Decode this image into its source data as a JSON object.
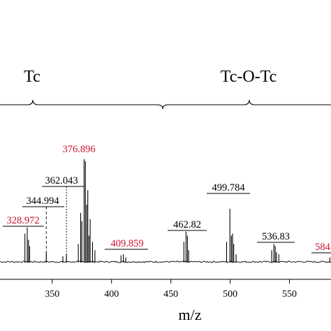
{
  "chart_data": {
    "type": "line",
    "title": "",
    "xlabel": "m/z",
    "ylabel": "",
    "xlim": [
      306,
      585
    ],
    "x_ticks": [
      "350",
      "400",
      "450",
      "500",
      "550"
    ],
    "x_tick_values": [
      350,
      400,
      450,
      500,
      550
    ],
    "ylim": [
      0,
      100
    ],
    "grid": false,
    "legend": "none",
    "groups": [
      {
        "label": "Tc",
        "range": [
          306,
          441
        ],
        "peak_position": 345
      },
      {
        "label": "Tc-O-Tc",
        "range": [
          441,
          585
        ],
        "peak_position": 517
      }
    ],
    "series": [
      {
        "peaks": [
          {
            "x": 327,
            "y": 28
          },
          {
            "x": 328.972,
            "y": 34
          },
          {
            "x": 330,
            "y": 22
          },
          {
            "x": 331,
            "y": 16
          },
          {
            "x": 345,
            "y": 10
          },
          {
            "x": 359,
            "y": 6
          },
          {
            "x": 362,
            "y": 8
          },
          {
            "x": 372,
            "y": 18
          },
          {
            "x": 374,
            "y": 48
          },
          {
            "x": 375,
            "y": 40
          },
          {
            "x": 376.896,
            "y": 100
          },
          {
            "x": 378,
            "y": 98
          },
          {
            "x": 379,
            "y": 56
          },
          {
            "x": 380,
            "y": 70
          },
          {
            "x": 381,
            "y": 26
          },
          {
            "x": 382,
            "y": 42
          },
          {
            "x": 384,
            "y": 20
          },
          {
            "x": 386,
            "y": 12
          },
          {
            "x": 408,
            "y": 7
          },
          {
            "x": 410,
            "y": 8
          },
          {
            "x": 412,
            "y": 5
          },
          {
            "x": 461,
            "y": 20
          },
          {
            "x": 462.82,
            "y": 30
          },
          {
            "x": 464,
            "y": 26
          },
          {
            "x": 465,
            "y": 12
          },
          {
            "x": 497,
            "y": 20
          },
          {
            "x": 499.784,
            "y": 52
          },
          {
            "x": 501,
            "y": 26
          },
          {
            "x": 502,
            "y": 28
          },
          {
            "x": 503,
            "y": 18
          },
          {
            "x": 505,
            "y": 8
          },
          {
            "x": 535,
            "y": 12
          },
          {
            "x": 536.83,
            "y": 18
          },
          {
            "x": 538,
            "y": 16
          },
          {
            "x": 539,
            "y": 10
          },
          {
            "x": 541,
            "y": 8
          },
          {
            "x": 584,
            "y": 5
          }
        ]
      }
    ],
    "annotations": [
      {
        "text": "376.896",
        "x": 376.896,
        "color": "#c8102e"
      },
      {
        "text": "362.043",
        "x": 362.043,
        "color": "#000000"
      },
      {
        "text": "344.994",
        "x": 344.994,
        "color": "#000000"
      },
      {
        "text": "328.972",
        "x": 328.972,
        "color": "#c8102e"
      },
      {
        "text": "409.859",
        "x": 409.859,
        "color": "#c8102e"
      },
      {
        "text": "462.82",
        "x": 462.82,
        "color": "#000000"
      },
      {
        "text": "499.784",
        "x": 499.784,
        "color": "#000000"
      },
      {
        "text": "536.83",
        "x": 536.83,
        "color": "#000000"
      },
      {
        "text": "584",
        "x": 584,
        "color": "#c8102e"
      }
    ]
  }
}
